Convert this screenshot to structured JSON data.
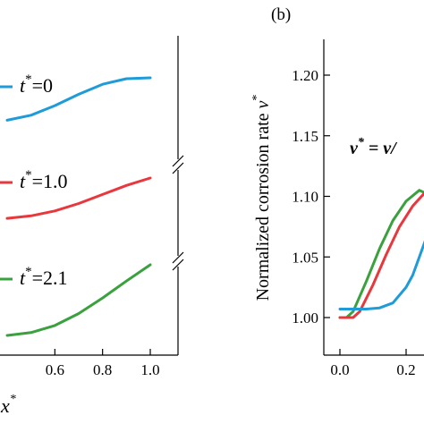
{
  "panel_b_label": "(b)",
  "chart_data": [
    {
      "type": "line",
      "panel": "a",
      "xlabel_var": "x",
      "xlabel_sup": "*",
      "xlim": [
        0.4,
        1.05
      ],
      "x_ticks": [
        {
          "value": 0.6,
          "label": "0.6"
        },
        {
          "value": 0.8,
          "label": "0.8"
        },
        {
          "value": 1.0,
          "label": "1.0"
        }
      ],
      "series": [
        {
          "var": "t",
          "sup": "*",
          "value_text": "=0",
          "color": "#1f9bd9",
          "x": [
            0.4,
            0.5,
            0.6,
            0.7,
            0.8,
            0.9,
            1.0
          ],
          "y": [
            0.05,
            0.16,
            0.37,
            0.62,
            0.84,
            0.96,
            0.98
          ]
        },
        {
          "var": "t",
          "sup": "*",
          "value_text": "=1.0",
          "color": "#e8383d",
          "x": [
            0.4,
            0.5,
            0.6,
            0.7,
            0.8,
            0.9,
            1.0
          ],
          "y": [
            0.02,
            0.08,
            0.2,
            0.38,
            0.6,
            0.82,
            1.0
          ]
        },
        {
          "var": "t",
          "sup": "*",
          "value_text": "=2.1",
          "color": "#3aa13e",
          "x": [
            0.4,
            0.5,
            0.6,
            0.7,
            0.8,
            0.9,
            1.0
          ],
          "y": [
            0.0,
            0.04,
            0.14,
            0.31,
            0.53,
            0.77,
            1.0
          ]
        }
      ]
    },
    {
      "type": "line",
      "panel": "b",
      "ylabel_text": "Normalized corrosion rate ",
      "ylabel_var": "v",
      "ylabel_sup": "*",
      "ylim": [
        0.98,
        1.22
      ],
      "xlim": [
        -0.1,
        0.45
      ],
      "y_ticks": [
        {
          "value": 1.0,
          "label": "1.00"
        },
        {
          "value": 1.05,
          "label": "1.05"
        },
        {
          "value": 1.1,
          "label": "1.10"
        },
        {
          "value": 1.15,
          "label": "1.15"
        },
        {
          "value": 1.2,
          "label": "1.20"
        }
      ],
      "x_ticks": [
        {
          "value": 0.0,
          "label": "0.0"
        },
        {
          "value": 0.2,
          "label": "0.2"
        }
      ],
      "annotation": {
        "lhs": "v",
        "sup": "*",
        "eq": " = ",
        "rhs": "v/"
      },
      "series": [
        {
          "color": "#3aa13e",
          "x": [
            0.0,
            0.02,
            0.04,
            0.08,
            0.12,
            0.16,
            0.2,
            0.24,
            0.28
          ],
          "y": [
            1.0,
            1.0,
            1.005,
            1.03,
            1.057,
            1.08,
            1.096,
            1.105,
            1.1
          ]
        },
        {
          "color": "#e8383d",
          "x": [
            0.0,
            0.04,
            0.06,
            0.1,
            0.14,
            0.18,
            0.22,
            0.26,
            0.28
          ],
          "y": [
            1.0,
            1.0,
            1.005,
            1.027,
            1.052,
            1.075,
            1.092,
            1.104,
            1.095
          ]
        },
        {
          "color": "#1f9bd9",
          "x": [
            0.0,
            0.08,
            0.12,
            0.16,
            0.2,
            0.22,
            0.24,
            0.26,
            0.28
          ],
          "y": [
            1.007,
            1.007,
            1.008,
            1.012,
            1.025,
            1.035,
            1.05,
            1.065,
            1.07
          ]
        }
      ]
    }
  ]
}
